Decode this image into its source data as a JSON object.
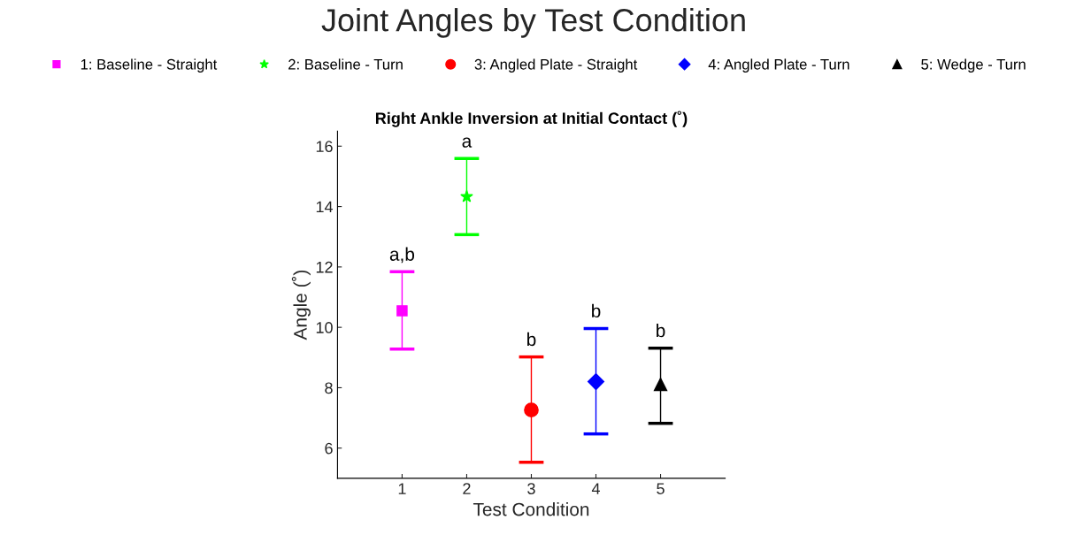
{
  "chart_data": {
    "type": "scatter",
    "title": "Joint Angles by Test Condition",
    "subtitle": "Right Ankle Inversion at Initial Contact (˚)",
    "xlabel": "Test Condition",
    "ylabel": "Angle (˚)",
    "xlim": [
      0,
      6
    ],
    "xticks": [
      1,
      2,
      3,
      4,
      5
    ],
    "ylim": [
      5,
      16.5
    ],
    "yticks": [
      6,
      8,
      10,
      12,
      14,
      16
    ],
    "grid": false,
    "legend": "top",
    "series": [
      {
        "name": "1: Baseline - Straight",
        "color": "#ff00ff",
        "marker": "square",
        "x": [
          1
        ],
        "values": [
          10.55
        ],
        "errors": [
          [
            9.28,
            11.84
          ]
        ]
      },
      {
        "name": "2: Baseline - Turn",
        "color": "#00ff00",
        "marker": "star",
        "x": [
          2
        ],
        "values": [
          14.33
        ],
        "errors": [
          [
            13.07,
            15.59
          ]
        ]
      },
      {
        "name": "3: Angled Plate - Straight",
        "color": "#ff0000",
        "marker": "circle",
        "x": [
          3
        ],
        "values": [
          7.26
        ],
        "errors": [
          [
            5.53,
            9.02
          ]
        ]
      },
      {
        "name": "4: Angled Plate - Turn",
        "color": "#0000ff",
        "marker": "diamond",
        "x": [
          4
        ],
        "values": [
          8.2
        ],
        "errors": [
          [
            6.47,
            9.96
          ]
        ]
      },
      {
        "name": "5: Wedge - Turn",
        "color": "#000000",
        "marker": "triangle",
        "x": [
          5
        ],
        "values": [
          8.11
        ],
        "errors": [
          [
            6.82,
            9.31
          ]
        ]
      }
    ],
    "annotations": [
      {
        "text": "a,b",
        "x": 1,
        "y": 11.84
      },
      {
        "text": "a",
        "x": 2,
        "y": 15.59
      },
      {
        "text": "b",
        "x": 3,
        "y": 9.02
      },
      {
        "text": "b",
        "x": 4,
        "y": 9.96
      },
      {
        "text": "b",
        "x": 5,
        "y": 9.31
      }
    ]
  }
}
